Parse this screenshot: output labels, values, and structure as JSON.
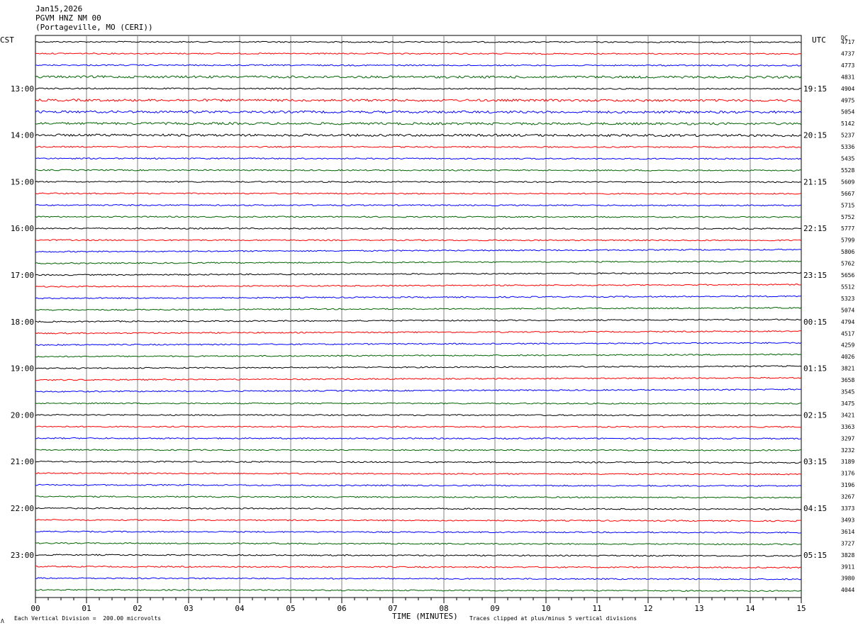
{
  "header": {
    "date": "Jan15,2026",
    "station": "PGVM HNZ NM 00",
    "location": "(Portageville, MO (CERI))"
  },
  "axis_titles": {
    "left_zone": "CST",
    "right_zone": "UTC",
    "dc_header": "DC",
    "x_title": "TIME (MINUTES)"
  },
  "footer": {
    "scale_note": "Each Vertical Division =  200.00 microvolts",
    "clip_note": "Traces clipped at plus/minus 5 vertical divisions",
    "corner_mark": "Λ"
  },
  "chart_data": {
    "type": "line",
    "title": "PGVM HNZ NM 00",
    "xlabel": "TIME (MINUTES)",
    "xlim": [
      0,
      15
    ],
    "x_ticks": [
      "00",
      "01",
      "02",
      "03",
      "04",
      "05",
      "06",
      "07",
      "08",
      "09",
      "10",
      "11",
      "12",
      "13",
      "14",
      "15"
    ],
    "trace_minutes": 15,
    "trace_colors": [
      "#000000",
      "#ff0000",
      "#0000ff",
      "#006400"
    ],
    "left_hour_labels": [
      "13:00",
      "14:00",
      "15:00",
      "16:00",
      "17:00",
      "18:00",
      "19:00",
      "20:00",
      "21:00",
      "22:00",
      "23:00"
    ],
    "right_hour_labels": [
      "19:15",
      "20:15",
      "21:15",
      "22:15",
      "23:15",
      "00:15",
      "01:15",
      "02:15",
      "03:15",
      "04:15",
      "05:15"
    ],
    "dc_offsets": [
      4717,
      4737,
      4773,
      4831,
      4904,
      4975,
      5054,
      5142,
      5237,
      5336,
      5435,
      5528,
      5609,
      5667,
      5715,
      5752,
      5777,
      5799,
      5806,
      5762,
      5656,
      5512,
      5323,
      5074,
      4794,
      4517,
      4259,
      4026,
      3821,
      3658,
      3545,
      3475,
      3421,
      3363,
      3297,
      3232,
      3189,
      3176,
      3196,
      3267,
      3373,
      3493,
      3614,
      3727,
      3828,
      3911,
      3980,
      4044
    ],
    "vertical_division_microvolts": 200.0,
    "clip_divisions": 5,
    "grid": true
  }
}
